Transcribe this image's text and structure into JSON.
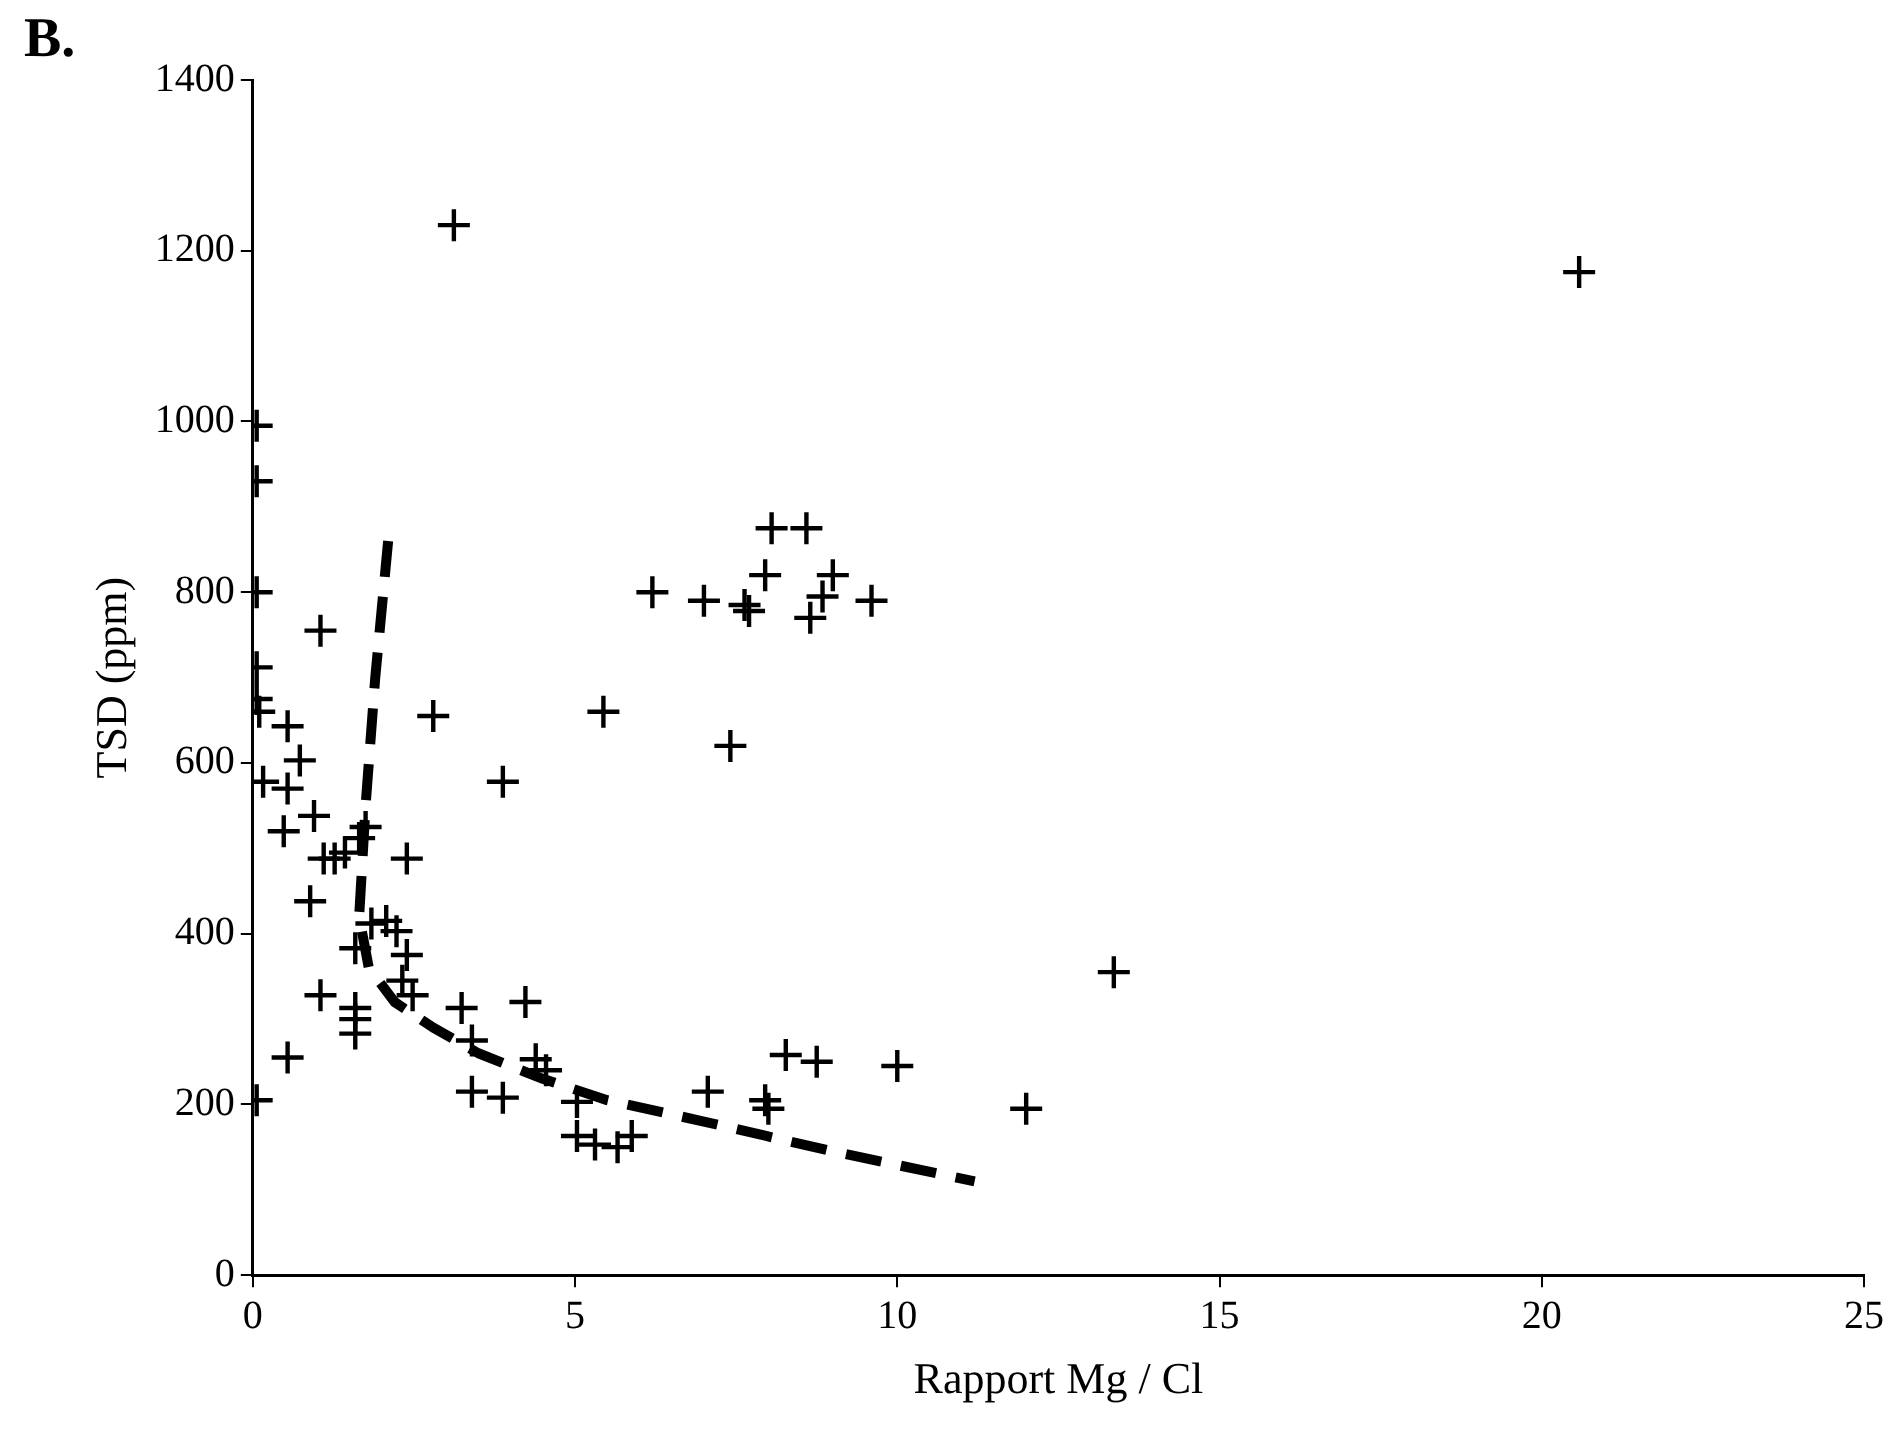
{
  "chart_data": {
    "type": "scatter",
    "xlabel": "Rapport Mg / Cl",
    "ylabel": "TSD (ppm)",
    "annotations": [
      "B."
    ],
    "xlim": [
      0,
      25
    ],
    "xticks": [
      0,
      5,
      10,
      15,
      20,
      25
    ],
    "ylim": [
      0,
      1400
    ],
    "yticks": [
      0,
      200,
      400,
      600,
      800,
      1000,
      1200,
      1400
    ],
    "grid": false,
    "legend": false,
    "marker": "cross",
    "series": [
      {
        "color": "#000000",
        "x": [
          0.06,
          0.06,
          0.06,
          0.06,
          0.06,
          0.1,
          0.54,
          1.05,
          2.8,
          5.44,
          0.73,
          0.16,
          0.54,
          3.88,
          0.48,
          0.95,
          1.75,
          1.27,
          1.1,
          1.43,
          1.65,
          2.39,
          0.89,
          1.84,
          2.07,
          1.59,
          2.23,
          2.39,
          2.32,
          2.48,
          1.05,
          1.59,
          1.59,
          1.59,
          0.54,
          0.06,
          3.24,
          3.4,
          4.23,
          4.39,
          4.55,
          3.4,
          3.88,
          5.03,
          5.03,
          5.31,
          5.66,
          5.88,
          7.06,
          8.05,
          8.59,
          6.2,
          7.0,
          7.63,
          7.7,
          7.95,
          9.0,
          8.84,
          8.65,
          9.6,
          7.41,
          3.12,
          20.58,
          13.36,
          12.0,
          10.0,
          8.75,
          8.27,
          8.0,
          7.95
        ],
        "values": [
          995,
          930,
          800,
          712,
          675,
          660,
          643,
          755,
          655,
          660,
          603,
          578,
          570,
          578,
          520,
          538,
          525,
          488,
          488,
          495,
          512,
          488,
          438,
          412,
          415,
          383,
          403,
          375,
          345,
          328,
          328,
          313,
          300,
          283,
          255,
          205,
          313,
          275,
          320,
          253,
          240,
          215,
          208,
          203,
          163,
          153,
          150,
          163,
          215,
          875,
          875,
          800,
          790,
          785,
          778,
          820,
          820,
          795,
          770,
          790,
          620,
          1230,
          1175,
          355,
          195,
          245,
          250,
          258,
          195,
          205
        ]
      },
      {
        "type": "line",
        "line_style": "dashed",
        "marker": "none",
        "color": "#000000",
        "x": [
          2.1,
          1.9,
          1.75,
          1.65,
          1.8,
          2.2,
          2.8,
          3.5,
          4.5,
          5.5,
          7,
          9,
          11.2
        ],
        "values": [
          860,
          700,
          550,
          420,
          360,
          320,
          290,
          260,
          230,
          205,
          180,
          145,
          110
        ]
      }
    ]
  }
}
